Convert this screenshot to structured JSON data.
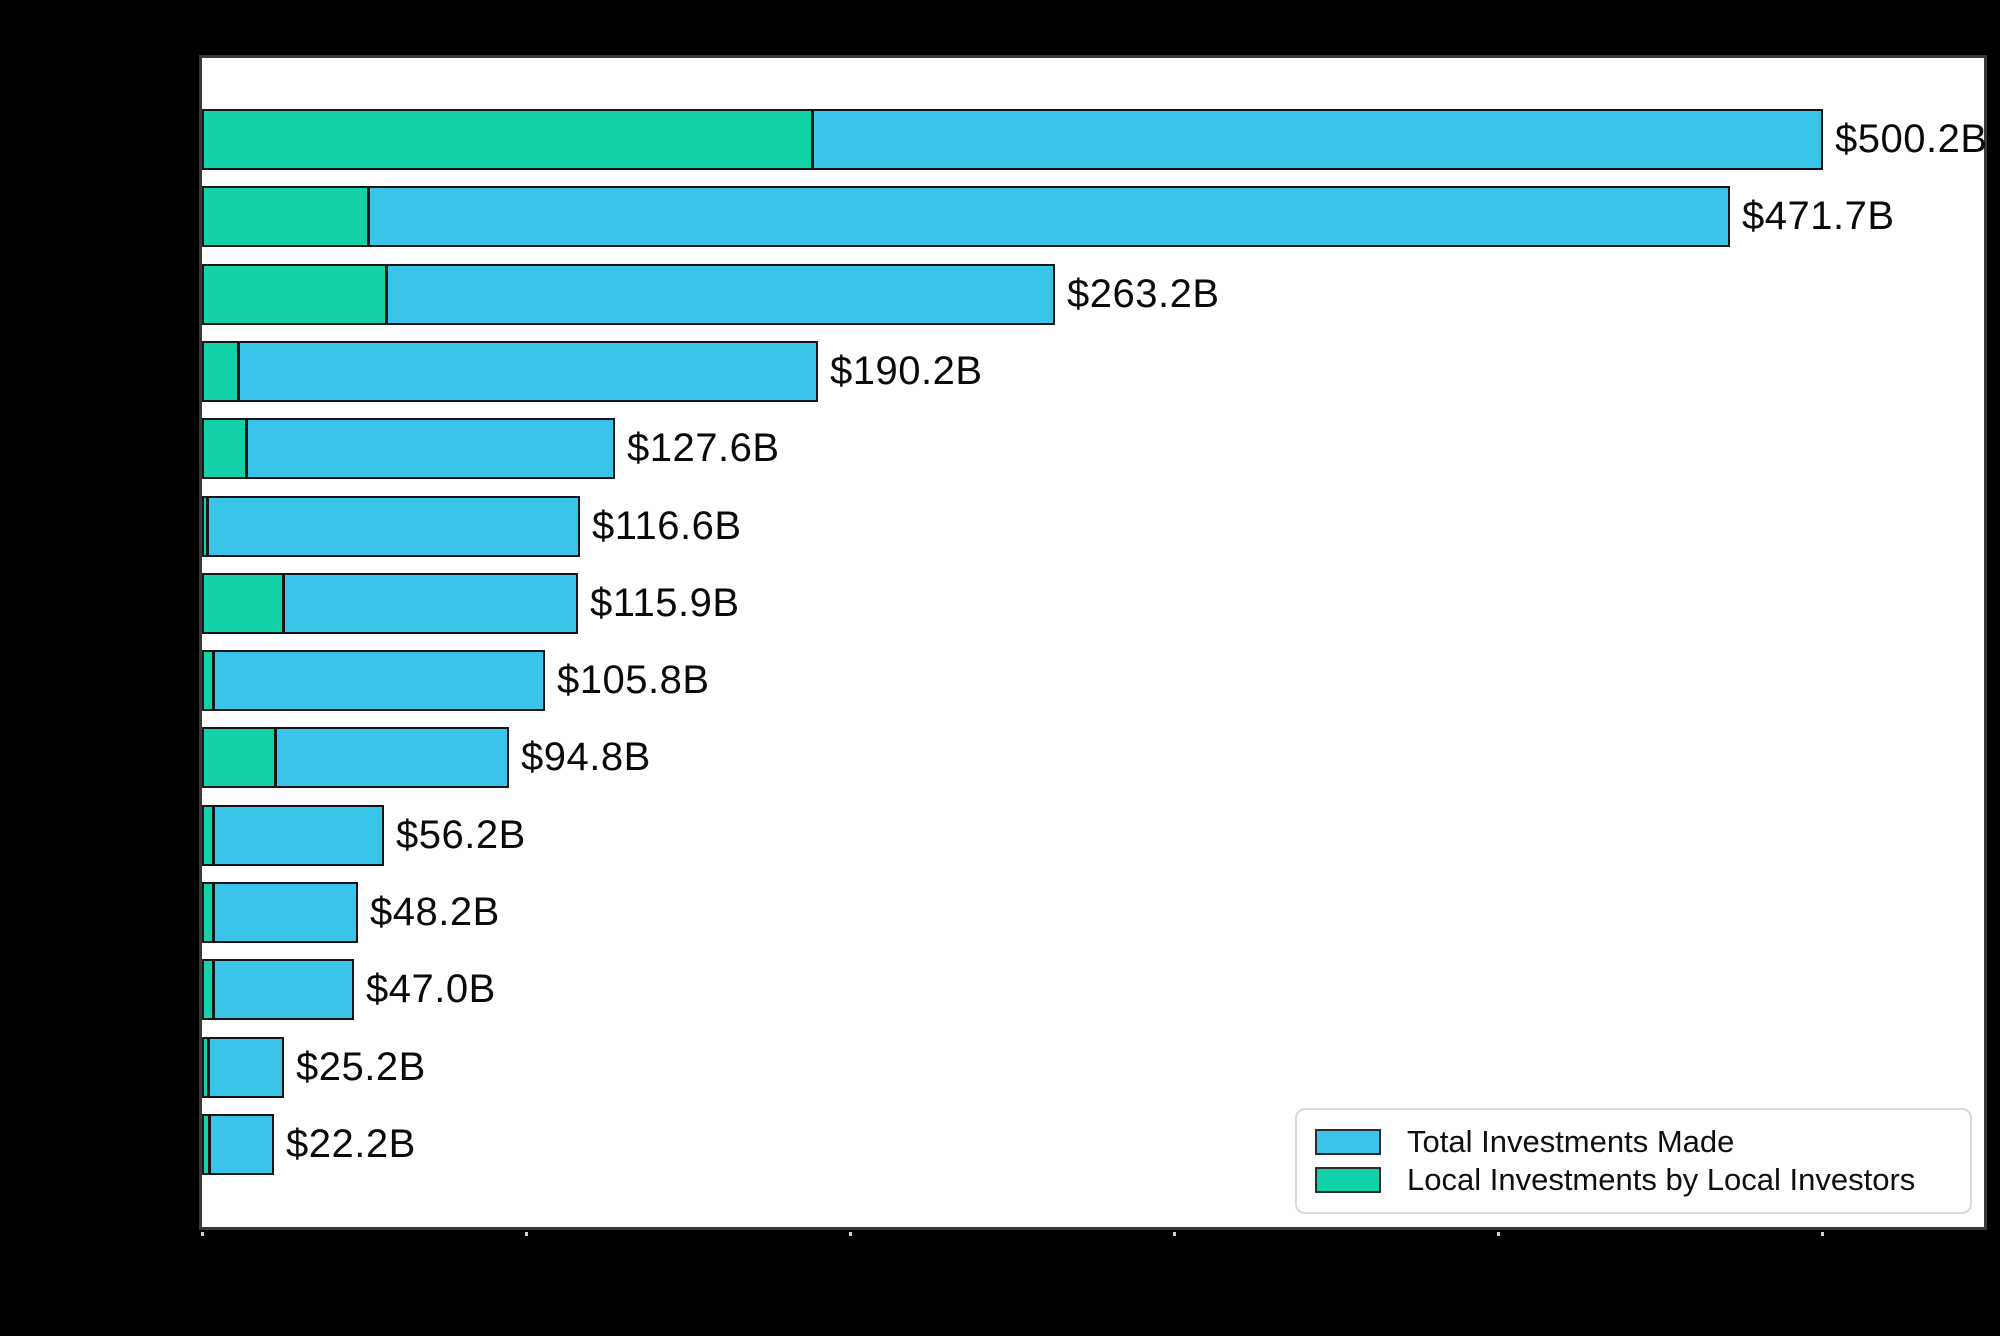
{
  "chart_data": {
    "type": "bar",
    "orientation": "horizontal",
    "title": "",
    "xlabel": "",
    "ylabel": "",
    "xlim": [
      0,
      550
    ],
    "x_ticks_billions": [
      0,
      100,
      200,
      300,
      400,
      500
    ],
    "grid": false,
    "legend_position": "lower right",
    "series": [
      {
        "name": "Total Investments Made",
        "color": "#3ac4ea",
        "values": [
          500.2,
          471.7,
          263.2,
          190.2,
          127.6,
          116.6,
          115.9,
          105.8,
          94.8,
          56.2,
          48.2,
          47.0,
          25.2,
          22.2
        ]
      },
      {
        "name": "Local Investments by Local Investors",
        "color": "#14d2a8",
        "values": [
          189.0,
          52.0,
          57.5,
          11.7,
          14.2,
          2.3,
          25.5,
          4.0,
          23.1,
          4.0,
          4.0,
          4.0,
          2.5,
          2.8
        ]
      }
    ],
    "bar_labels": [
      "$500.2B",
      "$471.7B",
      "$263.2B",
      "$190.2B",
      "$127.6B",
      "$116.6B",
      "$115.9B",
      "$105.8B",
      "$94.8B",
      "$56.2B",
      "$48.2B",
      "$47.0B",
      "$25.2B",
      "$22.2B"
    ]
  },
  "legend": {
    "items": [
      {
        "label": "Total Investments Made",
        "color": "#3ac4ea"
      },
      {
        "label": "Local Investments by Local Investors",
        "color": "#14d2a8"
      }
    ]
  },
  "colors": {
    "background": "#000000",
    "plot_background": "#ffffff",
    "bar_edge": "#161616",
    "spine": "#383838",
    "label_text": "#0a0a0a",
    "legend_border": "#d8d8d8",
    "tick_mark": "#d0d0d0"
  }
}
